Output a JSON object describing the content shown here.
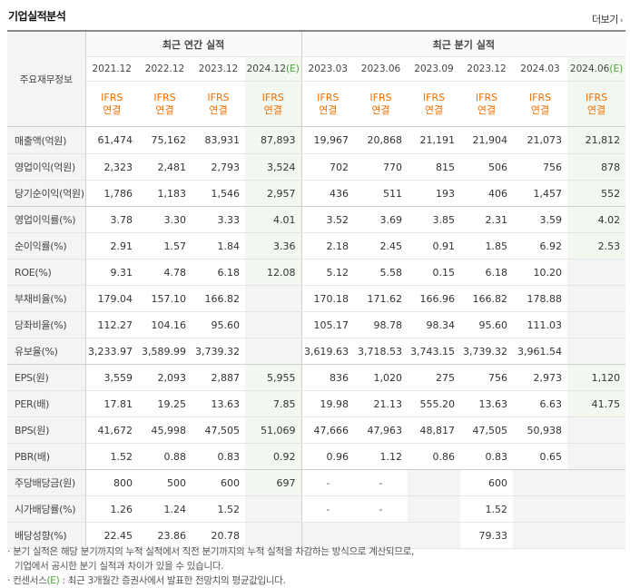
{
  "title": "기업실적분석",
  "more_label": "더보기",
  "header": {
    "row_label": "주요재무정보",
    "annual_group": "최근 연간 실적",
    "quarter_group": "최근 분기 실적",
    "annual_periods": [
      "2021.12",
      "2022.12",
      "2023.12",
      "2024.12"
    ],
    "annual_estimate_marker": "(E)",
    "quarter_periods": [
      "2023.03",
      "2023.06",
      "2023.09",
      "2023.12",
      "2024.03",
      "2024.06"
    ],
    "quarter_estimate_marker": "(E)",
    "basis_line1": "IFRS",
    "basis_line2": "연결"
  },
  "rows": [
    {
      "label": "매출액(억원)",
      "values": [
        "61,474",
        "75,162",
        "83,931",
        "87,893",
        "19,967",
        "20,868",
        "21,191",
        "21,904",
        "21,073",
        "21,812"
      ]
    },
    {
      "label": "영업이익(억원)",
      "values": [
        "2,323",
        "2,481",
        "2,793",
        "3,524",
        "702",
        "770",
        "815",
        "506",
        "756",
        "878"
      ]
    },
    {
      "label": "당기순이익(억원)",
      "values": [
        "1,786",
        "1,183",
        "1,546",
        "2,957",
        "436",
        "511",
        "193",
        "406",
        "1,457",
        "552"
      ]
    },
    {
      "label": "영업이익률(%)",
      "values": [
        "3.78",
        "3.30",
        "3.33",
        "4.01",
        "3.52",
        "3.69",
        "3.85",
        "2.31",
        "3.59",
        "4.02"
      ]
    },
    {
      "label": "순이익률(%)",
      "values": [
        "2.91",
        "1.57",
        "1.84",
        "3.36",
        "2.18",
        "2.45",
        "0.91",
        "1.85",
        "6.92",
        "2.53"
      ]
    },
    {
      "label": "ROE(%)",
      "values": [
        "9.31",
        "4.78",
        "6.18",
        "12.08",
        "5.12",
        "5.58",
        "0.15",
        "6.18",
        "10.20",
        ""
      ]
    },
    {
      "label": "부채비율(%)",
      "values": [
        "179.04",
        "157.10",
        "166.82",
        "",
        "170.18",
        "171.62",
        "166.96",
        "166.82",
        "178.88",
        ""
      ]
    },
    {
      "label": "당좌비율(%)",
      "values": [
        "112.27",
        "104.16",
        "95.60",
        "",
        "105.17",
        "98.78",
        "98.34",
        "95.60",
        "111.03",
        ""
      ]
    },
    {
      "label": "유보율(%)",
      "values": [
        "3,233.97",
        "3,589.99",
        "3,739.32",
        "",
        "3,619.63",
        "3,718.53",
        "3,743.15",
        "3,739.32",
        "3,961.54",
        ""
      ]
    },
    {
      "label": "EPS(원)",
      "values": [
        "3,559",
        "2,093",
        "2,887",
        "5,955",
        "836",
        "1,020",
        "275",
        "756",
        "2,973",
        "1,120"
      ]
    },
    {
      "label": "PER(배)",
      "values": [
        "17.81",
        "19.25",
        "13.63",
        "7.85",
        "19.98",
        "21.13",
        "555.20",
        "13.63",
        "6.63",
        "41.75"
      ]
    },
    {
      "label": "BPS(원)",
      "values": [
        "41,672",
        "45,998",
        "47,505",
        "51,069",
        "47,666",
        "47,963",
        "48,817",
        "47,505",
        "50,938",
        ""
      ]
    },
    {
      "label": "PBR(배)",
      "values": [
        "1.52",
        "0.88",
        "0.83",
        "0.92",
        "0.96",
        "1.12",
        "0.86",
        "0.83",
        "0.65",
        ""
      ]
    },
    {
      "label": "주당배당금(원)",
      "values": [
        "800",
        "500",
        "600",
        "697",
        "-",
        "-",
        "",
        "600",
        "",
        ""
      ]
    },
    {
      "label": "시가배당률(%)",
      "values": [
        "1.26",
        "1.24",
        "1.52",
        "",
        "-",
        "-",
        "",
        "1.52",
        "",
        ""
      ]
    },
    {
      "label": "배당성향(%)",
      "values": [
        "22.45",
        "23.86",
        "20.78",
        "",
        "",
        "",
        "",
        "79.33",
        "",
        ""
      ]
    }
  ],
  "notes": {
    "line1": "· 분기 실적은 해당 분기까지의 누적 실적에서 직전 분기까지의 누적 실적을 차감하는 방식으로 계산되므로,",
    "line2": "  기업에서 공시한 분기 실적과 차이가 있을 수 있습니다.",
    "line3_prefix": "· 컨센서스",
    "line3_marker": "(E)",
    "line3_suffix": " : 최근 3개월간 증권사에서 발표한 전망치의 평균값입니다."
  },
  "colors": {
    "ifrs": "#f16e00",
    "estimate_bg": "#f2f8ef",
    "estimate_text": "#4ca03c"
  }
}
